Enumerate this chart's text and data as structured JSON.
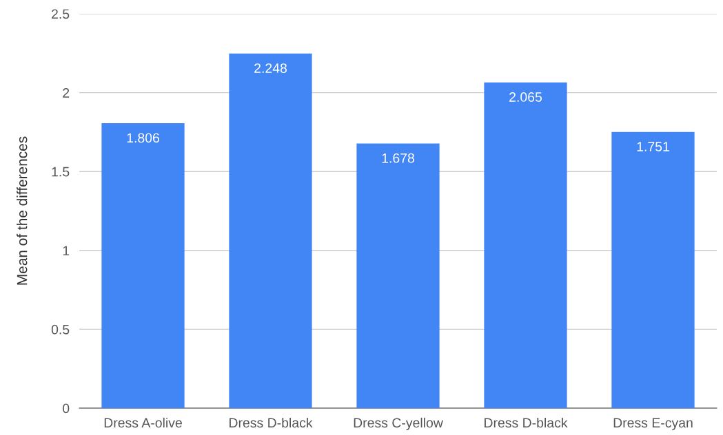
{
  "chart_data": {
    "type": "bar",
    "ylabel": "Mean of the differences",
    "categories": [
      "Dress A-olive",
      "Dress D-black",
      "Dress C-yellow",
      "Dress D-black",
      "Dress E-cyan"
    ],
    "values": [
      1.806,
      2.248,
      1.678,
      2.065,
      1.751
    ],
    "color": "#4285f4",
    "ylim": [
      0,
      2.5
    ],
    "yticks": [
      0,
      0.5,
      1,
      1.5,
      2,
      2.5
    ],
    "grid": "y",
    "data_labels": true
  }
}
